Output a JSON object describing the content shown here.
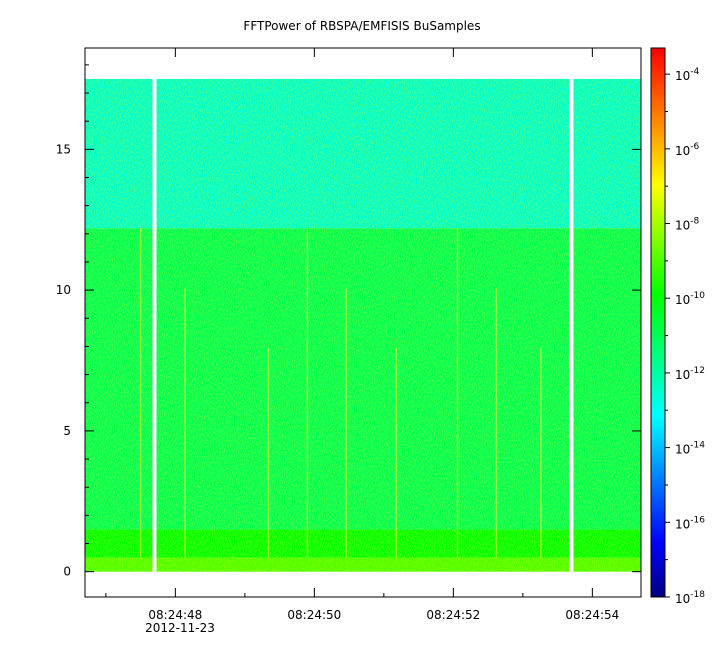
{
  "chart_data": {
    "type": "heatmap",
    "title": "FFTPower of RBSPA/EMFISIS  BuSamples",
    "xlabel": "",
    "ylabel": "",
    "x_ticks": [
      "08:24:48",
      "08:24:50",
      "08:24:52",
      "08:24:54"
    ],
    "x_date_label": "2012-11-23",
    "x_range_seconds": [
      46.7,
      54.7
    ],
    "y_ticks": [
      0,
      5,
      10,
      15
    ],
    "y_range": [
      -0.9,
      18.6
    ],
    "data_y_range": [
      0,
      17.5
    ],
    "gaps_seconds": [
      47.7,
      53.7
    ],
    "bands": [
      {
        "y_from": 0.0,
        "y_to": 0.5,
        "level": "-9"
      },
      {
        "y_from": 0.5,
        "y_to": 1.5,
        "level": "-10"
      },
      {
        "y_from": 1.5,
        "y_to": 12.2,
        "level": "-11"
      },
      {
        "y_from": 12.2,
        "y_to": 17.5,
        "level": "-12.5"
      }
    ],
    "colorbar": {
      "scale": "log",
      "range_exp": [
        -18,
        -3.3
      ],
      "tick_base": "10",
      "tick_exponents": [
        "-4",
        "-6",
        "-8",
        "-10",
        "-12",
        "-14",
        "-16",
        "-18"
      ],
      "colormap": [
        "#000080",
        "#0000ff",
        "#00ffff",
        "#00ff00",
        "#ffff00",
        "#ff0000"
      ]
    }
  }
}
